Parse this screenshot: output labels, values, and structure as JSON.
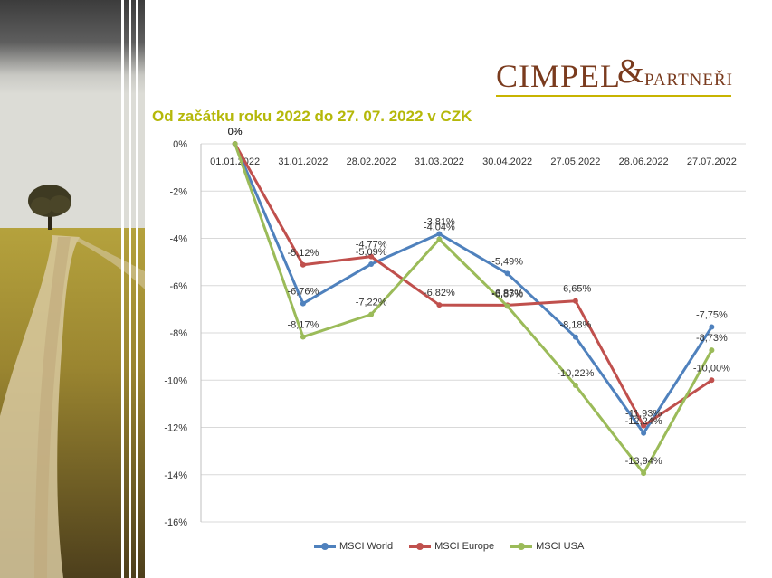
{
  "title": "Od začátku roku 2022 do 27. 07. 2022 v CZK",
  "logo": {
    "main": "CIMPEL",
    "amp": "&",
    "sub": "PARTNEŘI"
  },
  "colors": {
    "title": "#b5b80a",
    "logo": "#7a3b1e",
    "msci_world": "#4f81bd",
    "msci_europe": "#c0504d",
    "msci_usa": "#9bbb59"
  },
  "chart_data": {
    "type": "line",
    "title": "Od začátku roku 2022 do 27. 07. 2022 v CZK",
    "categories": [
      "01.01.2022",
      "31.01.2022",
      "28.02.2022",
      "31.03.2022",
      "30.04.2022",
      "27.05.2022",
      "28.06.2022",
      "27.07.2022"
    ],
    "ylim": [
      -16,
      0
    ],
    "yticks": [
      0,
      -2,
      -4,
      -6,
      -8,
      -10,
      -12,
      -14,
      -16
    ],
    "ytick_labels": [
      "0%",
      "-2%",
      "-4%",
      "-6%",
      "-8%",
      "-10%",
      "-12%",
      "-14%",
      "-16%"
    ],
    "grid": true,
    "legend_position": "bottom",
    "series": [
      {
        "name": "MSCI World",
        "values": [
          0,
          -6.76,
          -5.09,
          -3.81,
          -5.49,
          -8.18,
          -12.24,
          -7.75
        ],
        "labels": [
          "0%",
          "-6,76%",
          "-5,09%",
          "-3,81%",
          "-5,49%",
          "-8,18%",
          "-12,24%",
          "-7,75%"
        ]
      },
      {
        "name": "MSCI Europe",
        "values": [
          0,
          -5.12,
          -4.77,
          -6.82,
          -6.83,
          -6.65,
          -11.93,
          -10.0
        ],
        "labels": [
          "0%",
          "-5,12%",
          "-4,77%",
          "-6,82%",
          "-6,83%",
          "-6,65%",
          "-11,93%",
          "-10,00%"
        ]
      },
      {
        "name": "MSCI USA",
        "values": [
          0,
          -8.17,
          -7.22,
          -4.04,
          -6.87,
          -10.22,
          -13.94,
          -8.73
        ],
        "labels": [
          "0%",
          "-8,17%",
          "-7,22%",
          "-4,04%",
          "-6,87%",
          "-10,22%",
          "-13,94%",
          "-8,73%"
        ]
      }
    ]
  }
}
